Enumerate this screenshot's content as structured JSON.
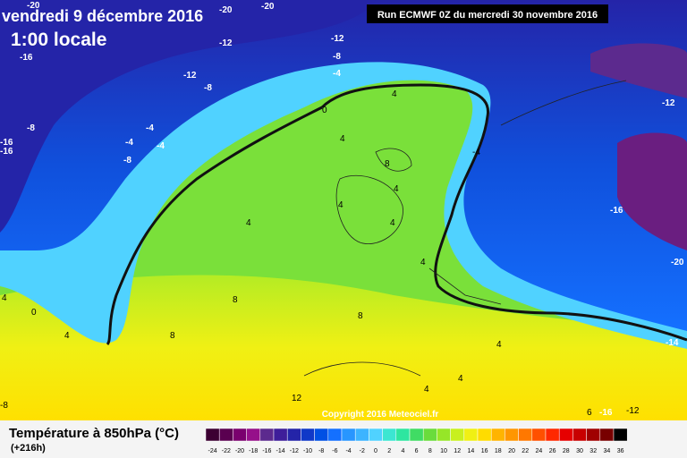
{
  "header": {
    "date": "vendredi 9 décembre 2016",
    "time": "1:00 locale",
    "run": "Run ECMWF 0Z du mercredi 30 novembre 2016"
  },
  "map": {
    "copyright": "Copyright 2016 Meteociel.fr",
    "labels": [
      "-20",
      "-20",
      "-20",
      "-16",
      "-12",
      "-12",
      "-12",
      "-8",
      "-8",
      "-8",
      "-4",
      "-4",
      "-4",
      "-4",
      "-8",
      "-12",
      "-16",
      "-20",
      "-14",
      "0",
      "0",
      "4",
      "4",
      "4",
      "4",
      "4",
      "8",
      "4",
      "4",
      "8",
      "8",
      "8",
      "4",
      "4",
      "12",
      "4",
      "6",
      "-8",
      "-12",
      "-16",
      "-16",
      "-4",
      "-16",
      "4",
      "4"
    ]
  },
  "legend": {
    "title": "Température à 850hPa (°C)",
    "horizon": "(+216h)",
    "ticks": [
      "-24",
      "-22",
      "-20",
      "-18",
      "-16",
      "-14",
      "-12",
      "-10",
      "-8",
      "-6",
      "-4",
      "-2",
      "0",
      "2",
      "4",
      "6",
      "8",
      "10",
      "12",
      "14",
      "16",
      "18",
      "20",
      "22",
      "24",
      "26",
      "28",
      "30",
      "32",
      "34",
      "36"
    ],
    "colors": [
      "#3c0032",
      "#5a0050",
      "#7a006e",
      "#96108a",
      "#5c2a8e",
      "#3e1e9a",
      "#2424a8",
      "#1038c8",
      "#0050e4",
      "#1470ff",
      "#2896ff",
      "#3cb4ff",
      "#50d2ff",
      "#3ce6d2",
      "#2ee6a0",
      "#40dc64",
      "#6adc3c",
      "#96e628",
      "#c8f01e",
      "#f0f014",
      "#ffdc00",
      "#ffb400",
      "#ff9600",
      "#ff7800",
      "#ff5000",
      "#ff2800",
      "#e60000",
      "#c80000",
      "#a00000",
      "#780000",
      "#000000"
    ]
  }
}
